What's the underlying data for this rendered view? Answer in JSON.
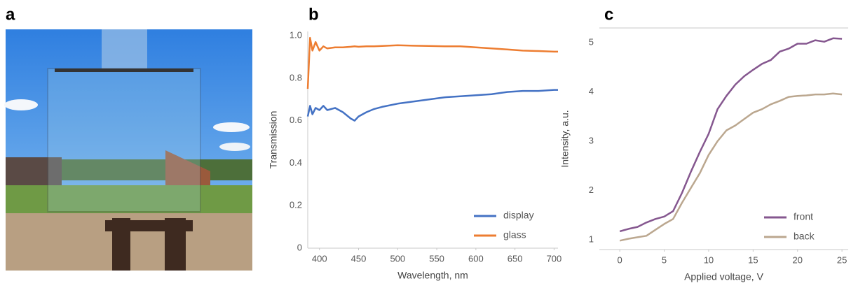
{
  "panel_labels": [
    "a",
    "b",
    "c"
  ],
  "chart_data": [
    {
      "type": "line",
      "x_label": "Wavelength, nm",
      "y_label": "Transmission",
      "xlim": [
        385,
        705
      ],
      "xticks": [
        400,
        450,
        500,
        550,
        600,
        650,
        700
      ],
      "ylim": [
        0,
        1.02
      ],
      "yticks": [
        0,
        0.2,
        0.4,
        0.6,
        0.8,
        {
          "value": 1,
          "label": "1.0"
        }
      ],
      "legend": "lower right",
      "grid": false,
      "x": [
        385,
        388,
        391,
        395,
        400,
        405,
        410,
        420,
        430,
        440,
        445,
        450,
        460,
        470,
        480,
        500,
        520,
        540,
        560,
        580,
        600,
        620,
        640,
        660,
        680,
        700,
        705
      ],
      "series": [
        {
          "name": "display",
          "color": "#4472c4",
          "values": [
            0.62,
            0.67,
            0.63,
            0.66,
            0.65,
            0.67,
            0.65,
            0.66,
            0.64,
            0.61,
            0.6,
            0.62,
            0.64,
            0.655,
            0.665,
            0.68,
            0.69,
            0.7,
            0.71,
            0.715,
            0.72,
            0.725,
            0.735,
            0.74,
            0.74,
            0.745,
            0.745
          ]
        },
        {
          "name": "glass",
          "color": "#ed7d31",
          "values": [
            0.75,
            0.99,
            0.93,
            0.97,
            0.93,
            0.95,
            0.94,
            0.945,
            0.945,
            0.948,
            0.95,
            0.948,
            0.95,
            0.95,
            0.952,
            0.955,
            0.953,
            0.952,
            0.95,
            0.95,
            0.945,
            0.94,
            0.935,
            0.93,
            0.928,
            0.925,
            0.925
          ]
        }
      ]
    },
    {
      "type": "line",
      "x_label": "Applied voltage, V",
      "y_label": "Intensity, a.u.",
      "xlim": [
        -2.3,
        25.7
      ],
      "xticks": [
        0,
        5,
        10,
        15,
        20,
        25
      ],
      "ylim": [
        0.8,
        5.3
      ],
      "yticks": [
        1,
        2,
        3,
        4,
        5
      ],
      "legend": "lower right",
      "grid": false,
      "x": [
        0,
        1,
        2,
        3,
        4,
        5,
        6,
        7,
        8,
        9,
        10,
        11,
        12,
        13,
        14,
        15,
        16,
        17,
        18,
        19,
        20,
        21,
        22,
        23,
        24,
        25
      ],
      "series": [
        {
          "name": "front",
          "color": "#85578f",
          "values": [
            1.17,
            1.22,
            1.26,
            1.35,
            1.42,
            1.47,
            1.58,
            1.95,
            2.38,
            2.78,
            3.15,
            3.65,
            3.92,
            4.15,
            4.32,
            4.45,
            4.57,
            4.65,
            4.82,
            4.88,
            4.98,
            4.98,
            5.05,
            5.02,
            5.09,
            5.08
          ]
        },
        {
          "name": "back",
          "color": "#bba78f",
          "values": [
            0.98,
            1.02,
            1.05,
            1.08,
            1.2,
            1.32,
            1.42,
            1.75,
            2.05,
            2.35,
            2.72,
            3.0,
            3.22,
            3.32,
            3.45,
            3.58,
            3.65,
            3.75,
            3.82,
            3.9,
            3.92,
            3.93,
            3.95,
            3.95,
            3.97,
            3.95
          ]
        }
      ]
    }
  ]
}
